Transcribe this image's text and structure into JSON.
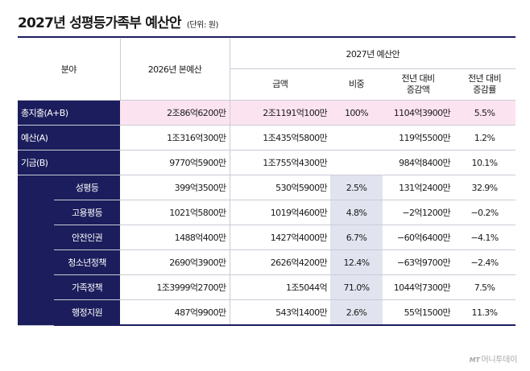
{
  "title": "2027년 성평등가족부 예산안",
  "unit": "(단위: 원)",
  "headers": {
    "field": "분야",
    "budget2026": "2026년 본예산",
    "proposal2027": "2027년 예산안",
    "amount": "금액",
    "share": "비중",
    "change_amount": "전년 대비\n증감액",
    "change_rate": "전년 대비\n증감률"
  },
  "rows": [
    {
      "label": "총지출(A+B)",
      "b2026": "2조86억6200만",
      "amount": "2조1191억100만",
      "share": "100%",
      "change": "1104억3900만",
      "rate": "5.5%"
    },
    {
      "label": "예산(A)",
      "b2026": "1조316억300만",
      "amount": "1조435억5800만",
      "share": "",
      "change": "119억5500만",
      "rate": "1.2%"
    },
    {
      "label": "기금(B)",
      "b2026": "9770억5900만",
      "amount": "1조755억4300만",
      "share": "",
      "change": "984억8400만",
      "rate": "10.1%"
    },
    {
      "label": "성평등",
      "b2026": "399억3500만",
      "amount": "530억5900만",
      "share": "2.5%",
      "change": "131억2400만",
      "rate": "32.9%"
    },
    {
      "label": "고용평등",
      "b2026": "1021억5800만",
      "amount": "1019억4600만",
      "share": "4.8%",
      "change": "−2억1200만",
      "rate": "−0.2%"
    },
    {
      "label": "안전인권",
      "b2026": "1488억400만",
      "amount": "1427억4000만",
      "share": "6.7%",
      "change": "−60억6400만",
      "rate": "−4.1%"
    },
    {
      "label": "청소년정책",
      "b2026": "2690억3900만",
      "amount": "2626억4200만",
      "share": "12.4%",
      "change": "−63억9700만",
      "rate": "−2.4%"
    },
    {
      "label": "가족정책",
      "b2026": "1조3999억2700만",
      "amount": "1조5044억",
      "share": "71.0%",
      "change": "1044억7300만",
      "rate": "7.5%"
    },
    {
      "label": "행정지원",
      "b2026": "487억9900만",
      "amount": "543억1400만",
      "share": "2.6%",
      "change": "55억1500만",
      "rate": "11.3%"
    }
  ],
  "brand": {
    "mark": "MT",
    "name": "머니투데이"
  },
  "colors": {
    "navy": "#1b1d5c",
    "pink": "#fce3f0",
    "share_shade": "#e1e4ef"
  }
}
